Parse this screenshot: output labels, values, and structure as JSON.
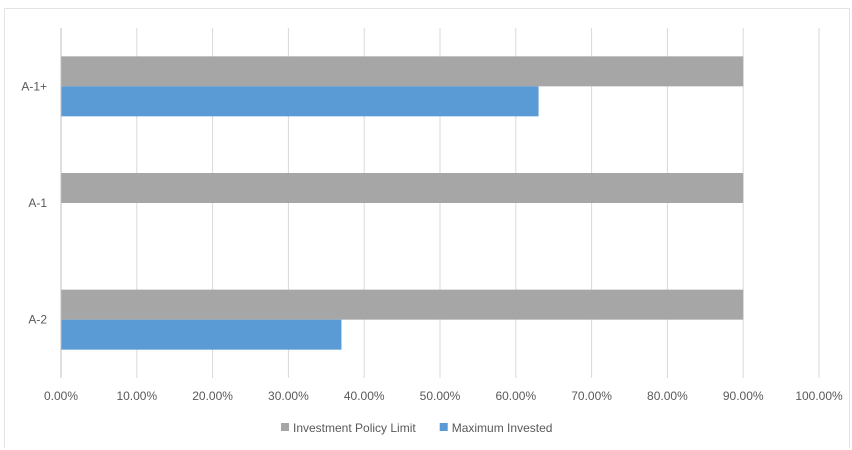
{
  "chart_data": {
    "type": "bar",
    "orientation": "horizontal",
    "title": "",
    "xlabel": "",
    "ylabel": "",
    "categories": [
      "A-1+",
      "A-1",
      "A-2"
    ],
    "series": [
      {
        "name": "Investment Policy Limit",
        "color": "#a6a6a6",
        "values": [
          0.9,
          0.9,
          0.9
        ]
      },
      {
        "name": "Maximum Invested",
        "color": "#5b9bd5",
        "values": [
          0.63,
          null,
          0.37
        ]
      }
    ],
    "xlim": [
      0,
      1.0
    ],
    "x_ticks": [
      0,
      0.1,
      0.2,
      0.3,
      0.4,
      0.5,
      0.6,
      0.7,
      0.8,
      0.9,
      1.0
    ],
    "x_tick_labels": [
      "0.00%",
      "10.00%",
      "20.00%",
      "30.00%",
      "40.00%",
      "50.00%",
      "60.00%",
      "70.00%",
      "80.00%",
      "90.00%",
      "100.00%"
    ],
    "grid": "vertical",
    "legend_position": "bottom"
  },
  "colors": {
    "gridline": "#d9d9d9",
    "axis": "#bfbfbf"
  }
}
